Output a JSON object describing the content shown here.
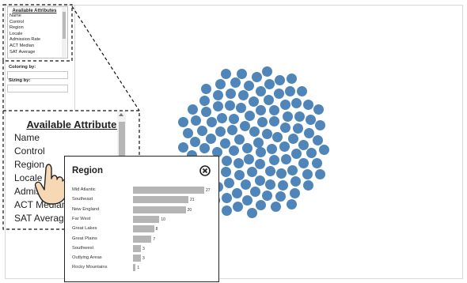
{
  "panel": {
    "attributes_title": "Available Attributes",
    "attributes": [
      "Name",
      "Control",
      "Region",
      "Locale",
      "Admission Rate",
      "ACT Median",
      "SAT Average"
    ],
    "coloring_label": "Coloring by:",
    "sizing_label": "Sizing by:"
  },
  "zoom": {
    "title": "Available Attributes",
    "items": [
      "Name",
      "Control",
      "Region",
      "Locale",
      "Admission Rate",
      "ACT Median",
      "SAT Average"
    ]
  },
  "popup": {
    "title": "Region",
    "rows": [
      {
        "label": "Mid Atlantic",
        "value": 27
      },
      {
        "label": "Southeast",
        "value": 21
      },
      {
        "label": "New England",
        "value": 20
      },
      {
        "label": "Far West",
        "value": 10
      },
      {
        "label": "Great Lakes",
        "value": 8
      },
      {
        "label": "Great Plains",
        "value": 7
      },
      {
        "label": "Southwest",
        "value": 3
      },
      {
        "label": "Outlying Areas",
        "value": 3
      },
      {
        "label": "Rocky Mountains",
        "value": 1
      }
    ]
  },
  "bubbles": {
    "color": "#4f85b8",
    "count": 121
  },
  "colors": {
    "bar": "#b5b5b5",
    "bubble": "#4f85b8"
  }
}
